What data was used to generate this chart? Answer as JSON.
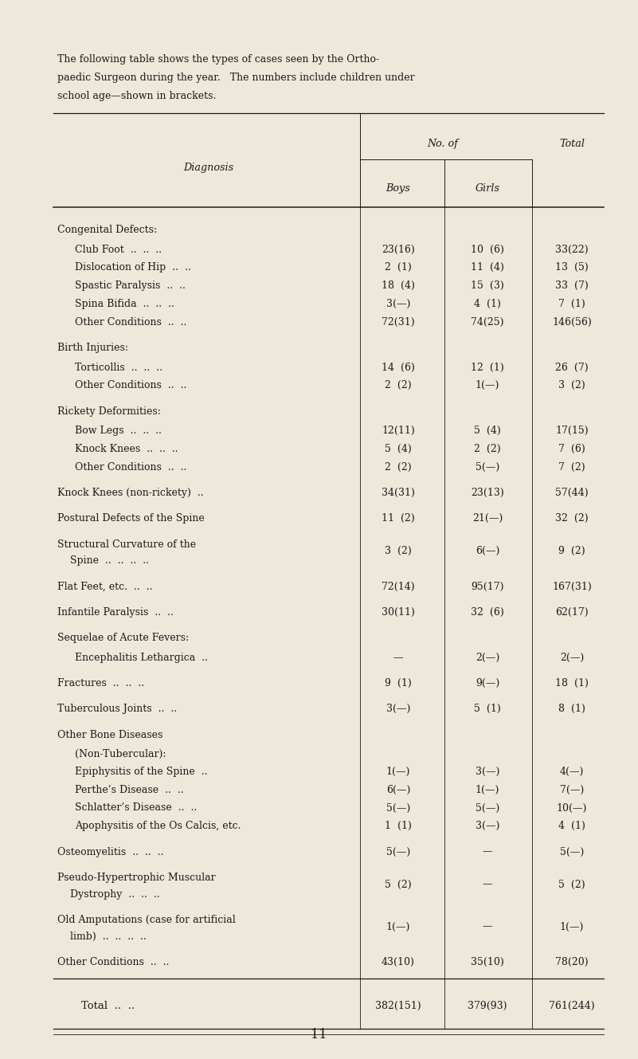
{
  "bg_color": "#ede8da",
  "text_color": "#1a1a1a",
  "intro_line1": "The following table shows the types of cases seen by the Ortho-",
  "intro_line2": "paedic Surgeon during the year.   The numbers include children under",
  "intro_line3": "school age—shown in brackets.",
  "header_diagnosis": "Diagnosis",
  "header_noof": "No. of",
  "header_boys": "Boys",
  "header_girls": "Girls",
  "header_total": "Total",
  "page_number": "11",
  "rows": [
    {
      "type": "section",
      "label": "Congenital Defects:"
    },
    {
      "type": "data",
      "indent": true,
      "label": "Club Foot  ..  ..  ..",
      "boys": "23(16)",
      "girls": "10  (6)",
      "total": "33(22)"
    },
    {
      "type": "data",
      "indent": true,
      "label": "Dislocation of Hip  ..  ..",
      "boys": "2  (1)",
      "girls": "11  (4)",
      "total": "13  (5)"
    },
    {
      "type": "data",
      "indent": true,
      "label": "Spastic Paralysis  ..  ..",
      "boys": "18  (4)",
      "girls": "15  (3)",
      "total": "33  (7)"
    },
    {
      "type": "data",
      "indent": true,
      "label": "Spina Bifida  ..  ..  ..",
      "boys": "3(—)",
      "girls": "4  (1)",
      "total": "7  (1)"
    },
    {
      "type": "data",
      "indent": true,
      "label": "Other Conditions  ..  ..",
      "boys": "72(31)",
      "girls": "74(25)",
      "total": "146(56)"
    },
    {
      "type": "spacer"
    },
    {
      "type": "section",
      "label": "Birth Injuries:"
    },
    {
      "type": "data",
      "indent": true,
      "label": "Torticollis  ..  ..  ..",
      "boys": "14  (6)",
      "girls": "12  (1)",
      "total": "26  (7)"
    },
    {
      "type": "data",
      "indent": true,
      "label": "Other Conditions  ..  ..",
      "boys": "2  (2)",
      "girls": "1(—)",
      "total": "3  (2)"
    },
    {
      "type": "spacer"
    },
    {
      "type": "section",
      "label": "Rickety Deformities:"
    },
    {
      "type": "data",
      "indent": true,
      "label": "Bow Legs  ..  ..  ..",
      "boys": "12(11)",
      "girls": "5  (4)",
      "total": "17(15)"
    },
    {
      "type": "data",
      "indent": true,
      "label": "Knock Knees  ..  ..  ..",
      "boys": "5  (4)",
      "girls": "2  (2)",
      "total": "7  (6)"
    },
    {
      "type": "data",
      "indent": true,
      "label": "Other Conditions  ..  ..",
      "boys": "2  (2)",
      "girls": "5(—)",
      "total": "7  (2)"
    },
    {
      "type": "spacer"
    },
    {
      "type": "data",
      "indent": false,
      "label": "Knock Knees (non-rickety)  ..",
      "boys": "34(31)",
      "girls": "23(13)",
      "total": "57(44)"
    },
    {
      "type": "spacer"
    },
    {
      "type": "data",
      "indent": false,
      "label": "Postural Defects of the Spine",
      "boys": "11  (2)",
      "girls": "21(—)",
      "total": "32  (2)"
    },
    {
      "type": "spacer"
    },
    {
      "type": "data2",
      "indent": false,
      "label1": "Structural Curvature of the",
      "label2": "    Spine  ..  ..  ..  ..",
      "boys": "3  (2)",
      "girls": "6(—)",
      "total": "9  (2)"
    },
    {
      "type": "spacer"
    },
    {
      "type": "data",
      "indent": false,
      "label": "Flat Feet, etc.  ..  ..",
      "boys": "72(14)",
      "girls": "95(17)",
      "total": "167(31)"
    },
    {
      "type": "spacer"
    },
    {
      "type": "data",
      "indent": false,
      "label": "Infantile Paralysis  ..  ..",
      "boys": "30(11)",
      "girls": "32  (6)",
      "total": "62(17)"
    },
    {
      "type": "spacer"
    },
    {
      "type": "section",
      "label": "Sequelae of Acute Fevers:"
    },
    {
      "type": "data",
      "indent": true,
      "label": "Encephalitis Lethargica  ..",
      "boys": "—",
      "girls": "2(—)",
      "total": "2(—)"
    },
    {
      "type": "spacer"
    },
    {
      "type": "data",
      "indent": false,
      "label": "Fractures  ..  ..  ..",
      "boys": "9  (1)",
      "girls": "9(—)",
      "total": "18  (1)"
    },
    {
      "type": "spacer"
    },
    {
      "type": "data",
      "indent": false,
      "label": "Tuberculous Joints  ..  ..",
      "boys": "3(—)",
      "girls": "5  (1)",
      "total": "8  (1)"
    },
    {
      "type": "spacer"
    },
    {
      "type": "section",
      "label": "Other Bone Diseases"
    },
    {
      "type": "section_sub",
      "label": "(Non-Tubercular):"
    },
    {
      "type": "data",
      "indent": true,
      "label": "Epiphysitis of the Spine  ..",
      "boys": "1(—)",
      "girls": "3(—)",
      "total": "4(—)"
    },
    {
      "type": "data",
      "indent": true,
      "label": "Perthe’s Disease  ..  ..",
      "boys": "6(—)",
      "girls": "1(—)",
      "total": "7(—)"
    },
    {
      "type": "data",
      "indent": true,
      "label": "Schlatter’s Disease  ..  ..",
      "boys": "5(—)",
      "girls": "5(—)",
      "total": "10(—)"
    },
    {
      "type": "data",
      "indent": true,
      "label": "Apophysitis of the Os Calcis, etc.",
      "boys": "1  (1)",
      "girls": "3(—)",
      "total": "4  (1)"
    },
    {
      "type": "spacer"
    },
    {
      "type": "data",
      "indent": false,
      "label": "Osteomyelitis  ..  ..  ..",
      "boys": "5(—)",
      "girls": "—",
      "total": "5(—)"
    },
    {
      "type": "spacer"
    },
    {
      "type": "data2",
      "indent": false,
      "label1": "Pseudo-Hypertrophic Muscular",
      "label2": "    Dystrophy  ..  ..  ..",
      "boys": "5  (2)",
      "girls": "—",
      "total": "5  (2)"
    },
    {
      "type": "spacer"
    },
    {
      "type": "data2",
      "indent": false,
      "label1": "Old Amputations (case for artificial",
      "label2": "    limb)  ..  ..  ..  ..",
      "boys": "1(—)",
      "girls": "—",
      "total": "1(—)"
    },
    {
      "type": "spacer"
    },
    {
      "type": "data",
      "indent": false,
      "label": "Other Conditions  ..  ..",
      "boys": "43(10)",
      "girls": "35(10)",
      "total": "78(20)"
    }
  ],
  "total_label": "Total  ..  ..",
  "total_row": {
    "boys": "382(151)",
    "girls": "379(93)",
    "total": "761(244)"
  }
}
